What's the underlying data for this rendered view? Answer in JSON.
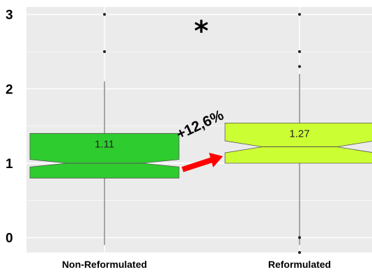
{
  "chart_data": {
    "type": "boxplot",
    "title": "",
    "xlabel": "",
    "ylabel": "",
    "notched": true,
    "grid": true,
    "ylim": [
      -0.2,
      3.1
    ],
    "yticks": [
      0,
      1,
      2,
      3
    ],
    "ytick_labels": [
      "0",
      "1",
      "2",
      "3"
    ],
    "categories": [
      "Non-Reformulated",
      "Reformulated"
    ],
    "boxes": [
      {
        "category": "Non-Reformulated",
        "min": -0.1,
        "q1": 0.8,
        "median": 1.0,
        "q3": 1.4,
        "max": 2.1,
        "notch": [
          0.95,
          1.05
        ],
        "outliers": [
          2.5,
          3.0
        ],
        "label": "1.11",
        "color": "#2ecc2e"
      },
      {
        "category": "Reformulated",
        "min": -0.1,
        "q1": 1.0,
        "median": 1.22,
        "q3": 1.54,
        "max": 2.2,
        "notch": [
          1.14,
          1.3
        ],
        "outliers": [
          -0.2,
          0.0,
          2.3,
          2.5,
          3.0
        ],
        "label": "1.27",
        "color": "#ccff33"
      }
    ],
    "annotations": {
      "percent_change": "+12,6%",
      "significance": "*"
    },
    "colors": {
      "panel": "#ebebeb",
      "grid": "#ffffff",
      "arrow": "#ff0000"
    }
  }
}
